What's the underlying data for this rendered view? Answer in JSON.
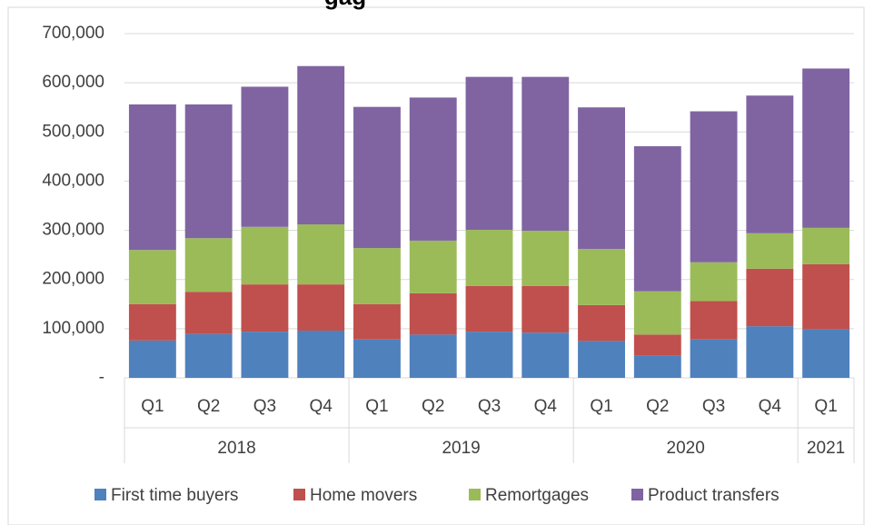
{
  "chart_data": {
    "type": "stacked_bar",
    "title": "gag",
    "groups": [
      {
        "label": "2018",
        "categories": [
          "Q1",
          "Q2",
          "Q3",
          "Q4"
        ]
      },
      {
        "label": "2019",
        "categories": [
          "Q1",
          "Q2",
          "Q3",
          "Q4"
        ]
      },
      {
        "label": "2020",
        "categories": [
          "Q1",
          "Q2",
          "Q3",
          "Q4"
        ]
      },
      {
        "label": "2021",
        "categories": [
          "Q1"
        ]
      }
    ],
    "series": [
      {
        "name": "First time buyers",
        "color": "#4f81bd",
        "values": [
          76000,
          89000,
          94000,
          96000,
          78000,
          88000,
          94000,
          92000,
          75000,
          46000,
          78000,
          105000,
          99000
        ]
      },
      {
        "name": "Home movers",
        "color": "#c0504d",
        "values": [
          74000,
          86000,
          96000,
          94000,
          72000,
          84000,
          93000,
          95000,
          73000,
          42000,
          78000,
          117000,
          132000
        ]
      },
      {
        "name": "Remortgages",
        "color": "#9bbb59",
        "values": [
          110000,
          109000,
          117000,
          122000,
          114000,
          107000,
          114000,
          112000,
          114000,
          88000,
          79000,
          72000,
          74000
        ]
      },
      {
        "name": "Product transfers",
        "color": "#8064a2",
        "values": [
          296000,
          272000,
          285000,
          322000,
          287000,
          291000,
          311000,
          313000,
          288000,
          295000,
          307000,
          280000,
          324000
        ]
      }
    ],
    "ylim": [
      0,
      700000
    ],
    "yticks": [
      {
        "value": 0,
        "label": "-"
      },
      {
        "value": 100000,
        "label": "100,000"
      },
      {
        "value": 200000,
        "label": "200,000"
      },
      {
        "value": 300000,
        "label": "300,000"
      },
      {
        "value": 400000,
        "label": "400,000"
      },
      {
        "value": 500000,
        "label": "500,000"
      },
      {
        "value": 600000,
        "label": "600,000"
      },
      {
        "value": 700000,
        "label": "700,000"
      }
    ],
    "grid": true,
    "legend": "bottom"
  }
}
